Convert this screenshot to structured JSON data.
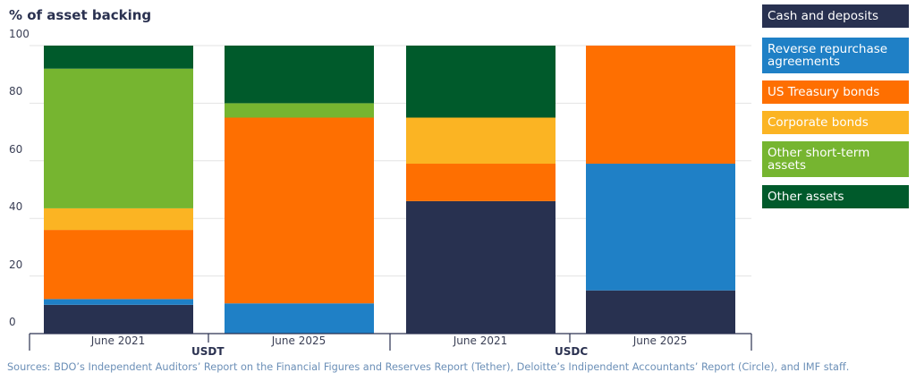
{
  "chart_data": {
    "type": "bar",
    "stacked": true,
    "ylabel": "% of asset backing",
    "ylim": [
      0,
      100
    ],
    "yticks": [
      0,
      20,
      40,
      60,
      80,
      100
    ],
    "groups": [
      {
        "name": "USDT",
        "categories": [
          "June 2021",
          "June 2025"
        ]
      },
      {
        "name": "USDC",
        "categories": [
          "June 2021",
          "June 2025"
        ]
      }
    ],
    "categories": [
      "June 2021",
      "June 2025",
      "June 2021",
      "June 2025"
    ],
    "series": [
      {
        "name": "Cash and deposits",
        "color": "#283150",
        "values": [
          10,
          0,
          46,
          15
        ]
      },
      {
        "name": "Reverse repurchase agreements",
        "color": "#1f80c6",
        "values": [
          2,
          10.5,
          0,
          44
        ]
      },
      {
        "name": "US Treasury bonds",
        "color": "#fe6f01",
        "values": [
          24,
          64.5,
          13,
          41
        ]
      },
      {
        "name": "Corporate bonds",
        "color": "#fbb423",
        "values": [
          7.5,
          0,
          16,
          0
        ]
      },
      {
        "name": "Other short-term assets",
        "color": "#76b530",
        "values": [
          48.5,
          5,
          0,
          0
        ]
      },
      {
        "name": "Other assets",
        "color": "#005a2b",
        "values": [
          8,
          20,
          25,
          0
        ]
      }
    ],
    "legend": "right"
  },
  "source": "Sources: BDO’s Independent Auditors’ Report on the Financial Figures and Reserves Report (Tether), Deloitte’s Indipendent Accountants’ Report (Circle), and IMF staff."
}
